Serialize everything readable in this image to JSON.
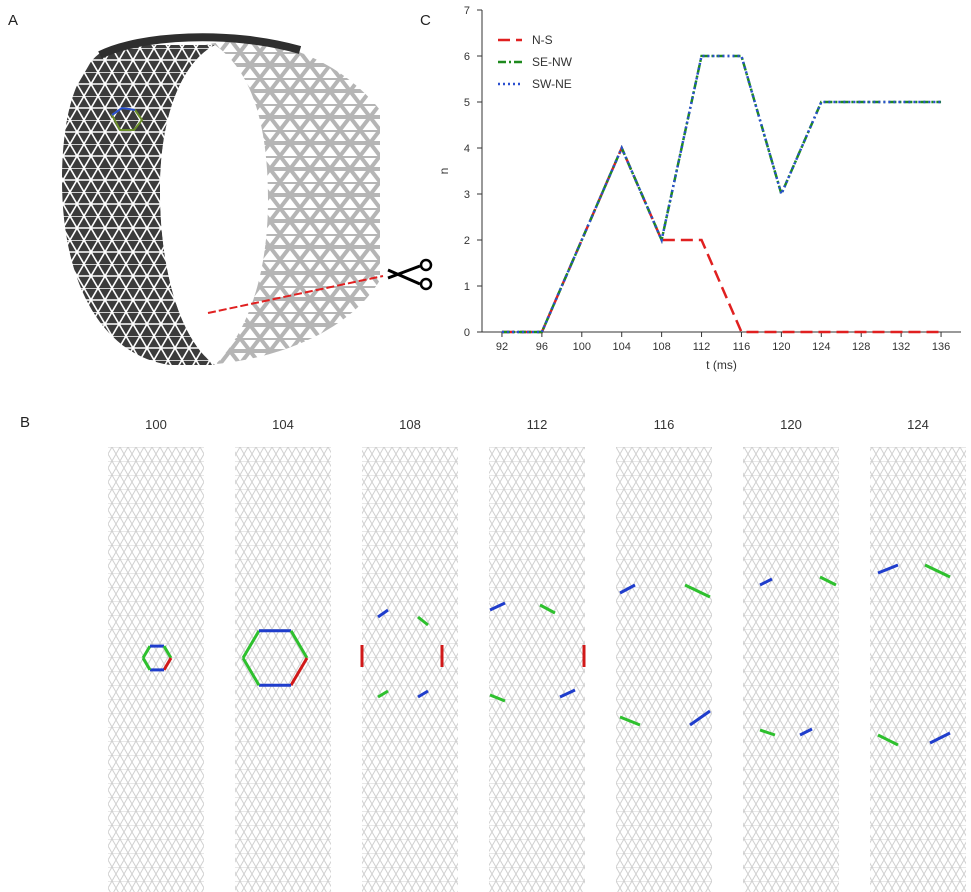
{
  "panels": {
    "a": "A",
    "b": "B",
    "c": "C"
  },
  "chart_data": {
    "type": "line",
    "xlabel": "t (ms)",
    "ylabel": "n",
    "xlim": [
      90,
      138
    ],
    "ylim": [
      0,
      7
    ],
    "xticks": [
      92,
      96,
      100,
      104,
      108,
      112,
      116,
      120,
      124,
      128,
      132,
      136
    ],
    "yticks": [
      0,
      1,
      2,
      3,
      4,
      5,
      6,
      7
    ],
    "legend_position": "top-left",
    "grid": false,
    "series": [
      {
        "name": "N-S",
        "color": "#e02020",
        "style": "dashed",
        "x": [
          92,
          96,
          104,
          108,
          112,
          116,
          120,
          124,
          128,
          132,
          136
        ],
        "y": [
          0,
          0,
          4,
          2,
          2,
          0,
          0,
          0,
          0,
          0,
          0
        ]
      },
      {
        "name": "SE-NW",
        "color": "#1e8a1e",
        "style": "dashdot",
        "x": [
          92,
          96,
          104,
          108,
          112,
          116,
          120,
          124,
          128,
          132,
          136
        ],
        "y": [
          0,
          0,
          4,
          2,
          6,
          6,
          3,
          5,
          5,
          5,
          5
        ]
      },
      {
        "name": "SW-NE",
        "color": "#2a4fd0",
        "style": "dotted",
        "x": [
          92,
          96,
          104,
          108,
          112,
          116,
          120,
          124,
          128,
          132,
          136
        ],
        "y": [
          0,
          0,
          4,
          2,
          6,
          6,
          3,
          5,
          5,
          5,
          5
        ]
      }
    ]
  },
  "strips": {
    "labels": [
      "100",
      "104",
      "108",
      "112",
      "116",
      "120",
      "124"
    ]
  }
}
